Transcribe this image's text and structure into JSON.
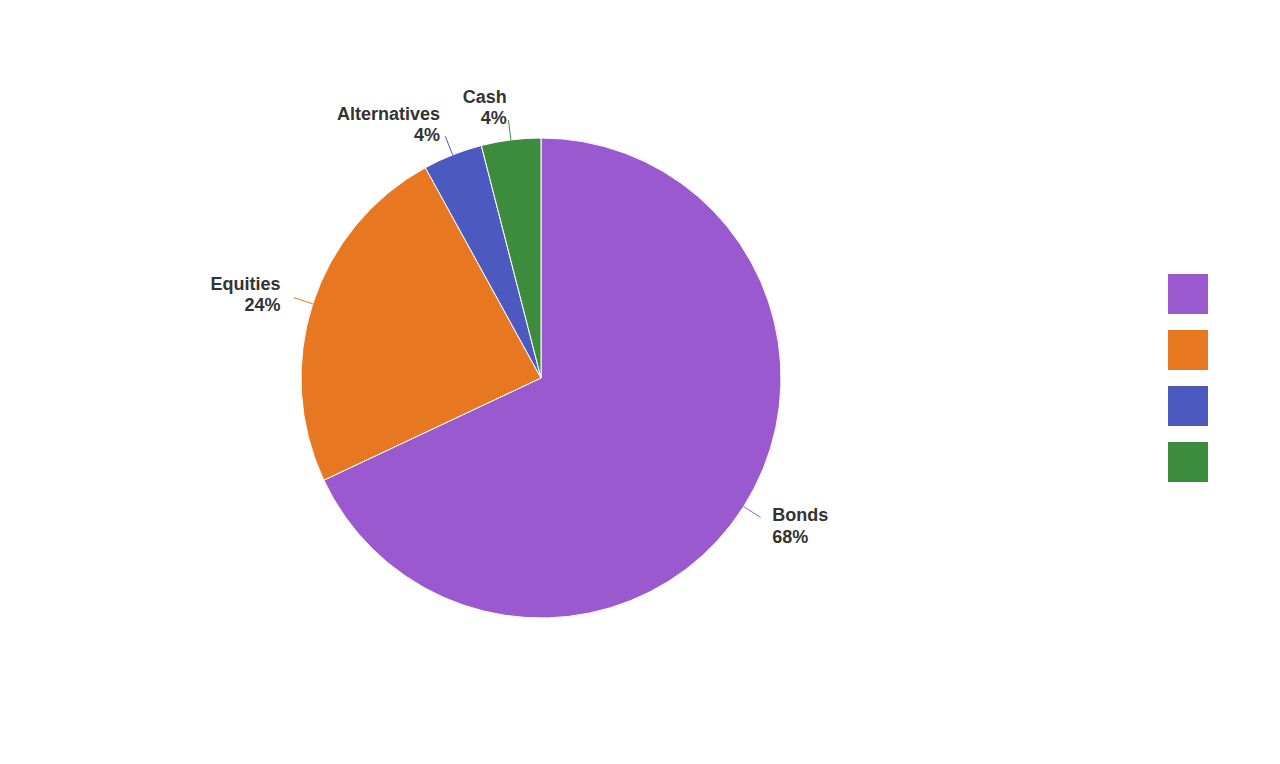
{
  "chart_data": {
    "type": "pie",
    "categories": [
      "Bonds",
      "Equities",
      "Alternatives",
      "Cash"
    ],
    "values": [
      68,
      24,
      4,
      4
    ],
    "value_labels": [
      "68%",
      "24%",
      "4%",
      "4%"
    ],
    "colors": [
      "#9b59d0",
      "#e87722",
      "#4c5abf",
      "#3d8c3d"
    ],
    "data_labels": true,
    "legend": "right"
  }
}
